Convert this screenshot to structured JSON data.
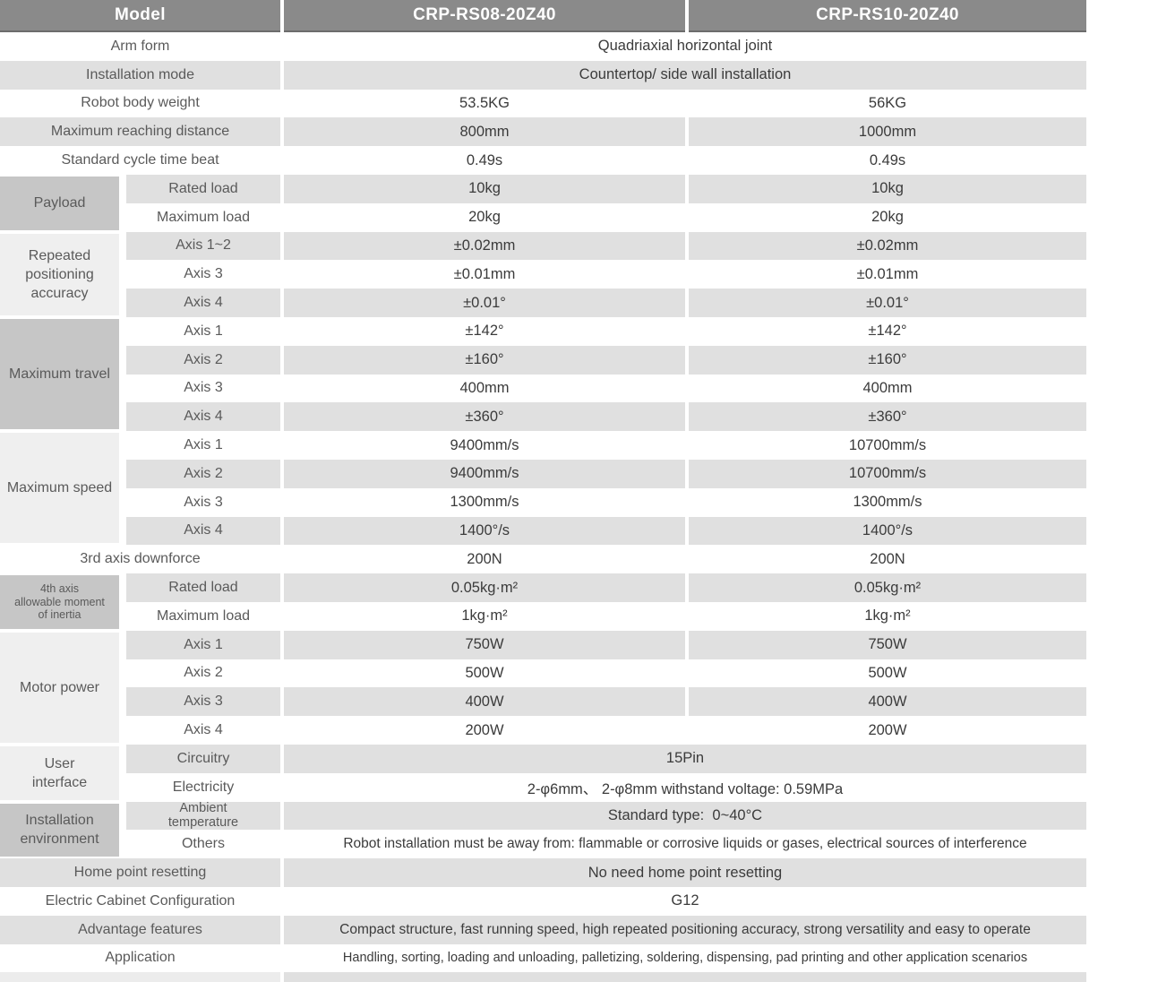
{
  "header": {
    "model_label": "Model",
    "col1": "CRP-RS08-20Z40",
    "col2": "CRP-RS10-20Z40"
  },
  "colors": {
    "header_bg": "#8a8a8a",
    "header_text": "#ffffff",
    "row_gray": "#e0e0e0",
    "group_dark": "#c6c6c6",
    "group_light": "#efefef",
    "label_text": "#5a5a5a",
    "value_text": "#3b3b3b"
  },
  "sections": [
    {
      "kind": "plain",
      "label": "Arm form",
      "rows": [
        {
          "merged": "Quadriaxial horizontal joint"
        }
      ]
    },
    {
      "kind": "plain",
      "label": "Installation mode",
      "rows": [
        {
          "merged": "Countertop/ side wall installation"
        }
      ]
    },
    {
      "kind": "plain",
      "label": "Robot body weight",
      "rows": [
        {
          "v1": "53.5KG",
          "v2": "56KG"
        }
      ]
    },
    {
      "kind": "plain",
      "label": "Maximum reaching distance",
      "rows": [
        {
          "v1": "800mm",
          "v2": "1000mm"
        }
      ]
    },
    {
      "kind": "plain",
      "label": "Standard cycle time beat",
      "rows": [
        {
          "v1": "0.49s",
          "v2": "0.49s"
        }
      ]
    },
    {
      "kind": "group",
      "label": "Payload",
      "tone": "dark",
      "rows": [
        {
          "sub": "Rated load",
          "v1": "10kg",
          "v2": "10kg"
        },
        {
          "sub": "Maximum load",
          "v1": "20kg",
          "v2": "20kg"
        }
      ]
    },
    {
      "kind": "group",
      "label": "Repeated\npositioning\naccuracy",
      "tone": "light",
      "rows": [
        {
          "sub": "Axis 1~2",
          "v1": "±0.02mm",
          "v2": "±0.02mm"
        },
        {
          "sub": "Axis 3",
          "v1": "±0.01mm",
          "v2": "±0.01mm"
        },
        {
          "sub": "Axis 4",
          "v1": "±0.01°",
          "v2": "±0.01°"
        }
      ]
    },
    {
      "kind": "group",
      "label": "Maximum travel",
      "tone": "dark",
      "rows": [
        {
          "sub": "Axis 1",
          "v1": "±142°",
          "v2": "±142°"
        },
        {
          "sub": "Axis 2",
          "v1": "±160°",
          "v2": "±160°"
        },
        {
          "sub": "Axis 3",
          "v1": "400mm",
          "v2": "400mm"
        },
        {
          "sub": "Axis 4",
          "v1": "±360°",
          "v2": "±360°"
        }
      ]
    },
    {
      "kind": "group",
      "label": "Maximum speed",
      "tone": "light",
      "rows": [
        {
          "sub": "Axis 1",
          "v1": "9400mm/s",
          "v2": "10700mm/s"
        },
        {
          "sub": "Axis 2",
          "v1": "9400mm/s",
          "v2": "10700mm/s"
        },
        {
          "sub": "Axis 3",
          "v1": "1300mm/s",
          "v2": "1300mm/s"
        },
        {
          "sub": "Axis 4",
          "v1": "1400°/s",
          "v2": "1400°/s"
        }
      ]
    },
    {
      "kind": "plain",
      "label": "3rd axis downforce",
      "rows": [
        {
          "v1": "200N",
          "v2": "200N"
        }
      ]
    },
    {
      "kind": "group",
      "label": "4th axis\nallowable moment\nof inertia",
      "tone": "dark",
      "small_text": true,
      "rows": [
        {
          "sub": "Rated load",
          "v1": "0.05kg·m²",
          "v2": "0.05kg·m²"
        },
        {
          "sub": "Maximum load",
          "v1": "1kg·m²",
          "v2": "1kg·m²"
        }
      ]
    },
    {
      "kind": "group",
      "label": "Motor power",
      "tone": "light",
      "rows": [
        {
          "sub": "Axis 1",
          "v1": "750W",
          "v2": "750W"
        },
        {
          "sub": "Axis 2",
          "v1": "500W",
          "v2": "500W"
        },
        {
          "sub": "Axis 3",
          "v1": "400W",
          "v2": "400W"
        },
        {
          "sub": "Axis 4",
          "v1": "200W",
          "v2": "200W"
        }
      ]
    },
    {
      "kind": "group",
      "label": "User\ninterface",
      "tone": "light",
      "rows": [
        {
          "sub": "Circuitry",
          "merged": "15Pin"
        },
        {
          "sub": "Electricity",
          "merged": "2-φ6mm、 2-φ8mm withstand voltage: 0.59MPa"
        }
      ]
    },
    {
      "kind": "group",
      "label": "Installation\nenvironment",
      "tone": "dark",
      "rows": [
        {
          "sub": "Ambient\ntemperature",
          "merged": "Standard type:  0~40°C"
        },
        {
          "sub": "Others",
          "merged": "Robot installation must be away from: flammable or corrosive liquids or gases, electrical sources of interference"
        }
      ]
    },
    {
      "kind": "plain",
      "label": "Home point resetting",
      "rows": [
        {
          "merged": "No need home point resetting"
        }
      ]
    },
    {
      "kind": "plain",
      "label": "Electric Cabinet Configuration",
      "rows": [
        {
          "merged": "G12"
        }
      ]
    },
    {
      "kind": "plain",
      "label": "Advantage features",
      "rows": [
        {
          "merged": "Compact structure, fast running speed, high repeated positioning accuracy, strong versatility and easy to operate"
        }
      ]
    },
    {
      "kind": "plain",
      "label": "Application",
      "rows": [
        {
          "merged": "Handling, sorting, loading and unloading, palletizing, soldering, dispensing, pad printing and other application scenarios"
        }
      ]
    }
  ]
}
